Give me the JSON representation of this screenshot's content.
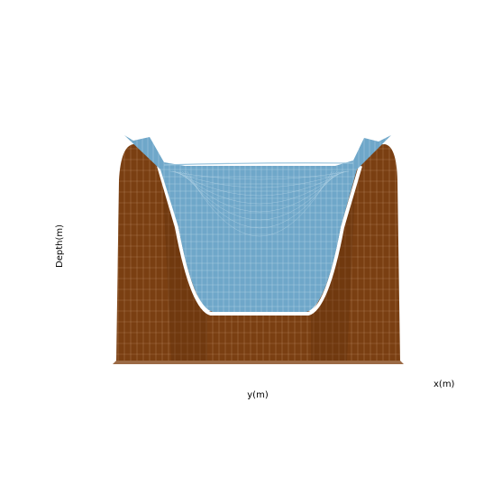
{
  "chart_data": {
    "type": "surface3d",
    "title": "",
    "xlabel": "x(m)",
    "ylabel": "y(m)",
    "zlabel": "Depth(m)",
    "grid": false,
    "legend": "none",
    "surfaces": [
      {
        "role": "basin",
        "color": "#7a3f12",
        "mesh_color": "#d9b48f"
      },
      {
        "role": "water",
        "color": "#6fa7c9",
        "mesh_color": "#c9e1ee"
      }
    ]
  }
}
